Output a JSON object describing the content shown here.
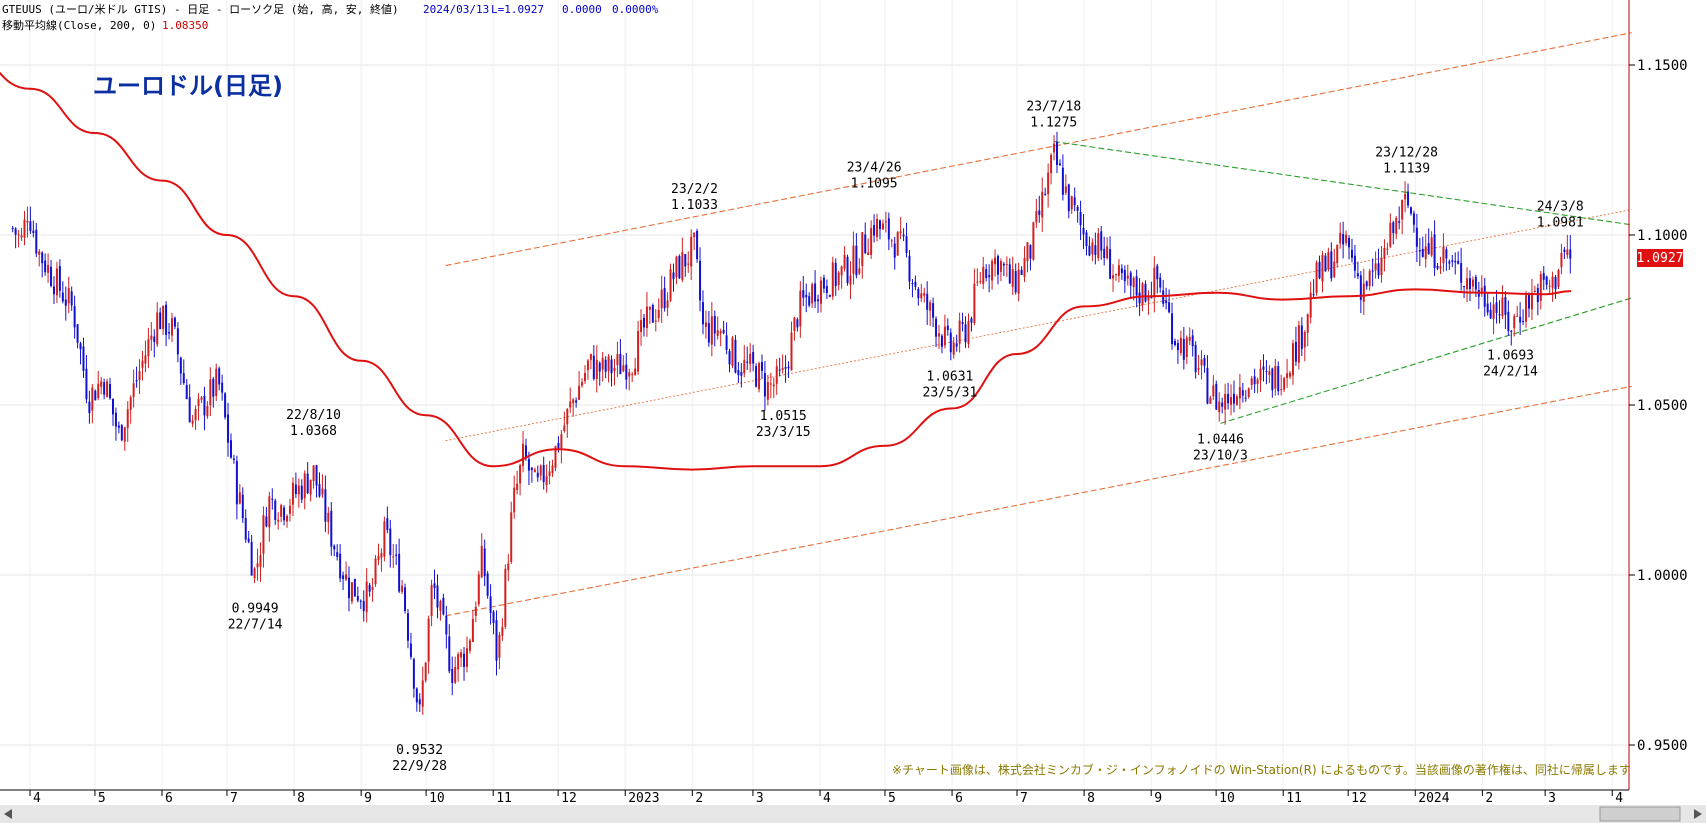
{
  "header": {
    "line1": "GTEUUS (ユーロ/米ドル GTIS) - 日足 - ローソク足 (始, 高, 安, 終値)",
    "date": "2024/03/13",
    "last": "L=1.0927",
    "change": "0.0000",
    "change_pct": "0.0000%",
    "ma_label": "移動平均線(Close, 200, 0)",
    "ma_value": "1.08350"
  },
  "title": "ユーロドル(日足)",
  "copyright": "※チャート画像は、株式会社ミンカブ・ジ・インフォノイドの Win-Station(R) によるものです。当該画像の著作権は、同社に帰属します",
  "price_box": "1.0927",
  "colors": {
    "up_candle": "#d02020",
    "down_candle": "#1010d0",
    "ma": "#e01010",
    "channel": "#e8703a",
    "triangle": "#2aa02a",
    "price_box": "#e01010",
    "title": "#0a2fa0"
  },
  "chart_data": {
    "type": "candlestick",
    "title": "ユーロドル(日足)",
    "y_axis_side": "right",
    "ylim": [
      0.9425,
      1.1725
    ],
    "y_ticks": [
      "1.1500",
      "1.1000",
      "1.0500",
      "1.0000",
      "0.9500"
    ],
    "x_ticks": [
      "4",
      "5",
      "6",
      "7",
      "8",
      "9",
      "10",
      "11",
      "12",
      "2023",
      "2",
      "3",
      "4",
      "5",
      "6",
      "7",
      "8",
      "9",
      "10",
      "11",
      "12",
      "2024",
      "2",
      "3",
      "4"
    ],
    "x_range": [
      "2022-04",
      "2024-04"
    ],
    "close_path": [
      {
        "date": "2022-03-24",
        "close": 1.102
      },
      {
        "date": "2022-03-28",
        "close": 1.098
      },
      {
        "date": "2022-03-31",
        "close": 1.108
      },
      {
        "date": "2022-04-05",
        "close": 1.095
      },
      {
        "date": "2022-04-14",
        "close": 1.085
      },
      {
        "date": "2022-04-21",
        "close": 1.078
      },
      {
        "date": "2022-04-28",
        "close": 1.052
      },
      {
        "date": "2022-05-05",
        "close": 1.058
      },
      {
        "date": "2022-05-12",
        "close": 1.041
      },
      {
        "date": "2022-05-19",
        "close": 1.055
      },
      {
        "date": "2022-05-30",
        "close": 1.076
      },
      {
        "date": "2022-06-06",
        "close": 1.072
      },
      {
        "date": "2022-06-15",
        "close": 1.045
      },
      {
        "date": "2022-06-27",
        "close": 1.057
      },
      {
        "date": "2022-07-05",
        "close": 1.027
      },
      {
        "date": "2022-07-14",
        "close": 1.0
      },
      {
        "date": "2022-07-20",
        "close": 1.022
      },
      {
        "date": "2022-07-27",
        "close": 1.02
      },
      {
        "date": "2022-08-10",
        "close": 1.03
      },
      {
        "date": "2022-08-18",
        "close": 1.012
      },
      {
        "date": "2022-08-26",
        "close": 0.997
      },
      {
        "date": "2022-09-05",
        "close": 0.993
      },
      {
        "date": "2022-09-12",
        "close": 1.012
      },
      {
        "date": "2022-09-20",
        "close": 0.997
      },
      {
        "date": "2022-09-28",
        "close": 0.958
      },
      {
        "date": "2022-10-04",
        "close": 0.998
      },
      {
        "date": "2022-10-13",
        "close": 0.972
      },
      {
        "date": "2022-10-20",
        "close": 0.978
      },
      {
        "date": "2022-10-27",
        "close": 1.005
      },
      {
        "date": "2022-11-03",
        "close": 0.975
      },
      {
        "date": "2022-11-10",
        "close": 1.02
      },
      {
        "date": "2022-11-15",
        "close": 1.035
      },
      {
        "date": "2022-11-21",
        "close": 1.025
      },
      {
        "date": "2022-11-30",
        "close": 1.037
      },
      {
        "date": "2022-12-07",
        "close": 1.05
      },
      {
        "date": "2022-12-15",
        "close": 1.062
      },
      {
        "date": "2022-12-22",
        "close": 1.06
      },
      {
        "date": "2023-01-04",
        "close": 1.063
      },
      {
        "date": "2023-01-10",
        "close": 1.073
      },
      {
        "date": "2023-01-18",
        "close": 1.081
      },
      {
        "date": "2023-01-25",
        "close": 1.09
      },
      {
        "date": "2023-02-02",
        "close": 1.096
      },
      {
        "date": "2023-02-06",
        "close": 1.072
      },
      {
        "date": "2023-02-14",
        "close": 1.072
      },
      {
        "date": "2023-02-22",
        "close": 1.062
      },
      {
        "date": "2023-03-02",
        "close": 1.06
      },
      {
        "date": "2023-03-08",
        "close": 1.055
      },
      {
        "date": "2023-03-15",
        "close": 1.058
      },
      {
        "date": "2023-03-22",
        "close": 1.078
      },
      {
        "date": "2023-03-30",
        "close": 1.085
      },
      {
        "date": "2023-04-10",
        "close": 1.088
      },
      {
        "date": "2023-04-18",
        "close": 1.093
      },
      {
        "date": "2023-04-26",
        "close": 1.103
      },
      {
        "date": "2023-05-03",
        "close": 1.1
      },
      {
        "date": "2023-05-10",
        "close": 1.095
      },
      {
        "date": "2023-05-17",
        "close": 1.082
      },
      {
        "date": "2023-05-24",
        "close": 1.075
      },
      {
        "date": "2023-05-31",
        "close": 1.066
      },
      {
        "date": "2023-06-08",
        "close": 1.073
      },
      {
        "date": "2023-06-15",
        "close": 1.09
      },
      {
        "date": "2023-06-22",
        "close": 1.093
      },
      {
        "date": "2023-06-29",
        "close": 1.085
      },
      {
        "date": "2023-07-07",
        "close": 1.095
      },
      {
        "date": "2023-07-18",
        "close": 1.123
      },
      {
        "date": "2023-07-25",
        "close": 1.11
      },
      {
        "date": "2023-08-01",
        "close": 1.1
      },
      {
        "date": "2023-08-10",
        "close": 1.095
      },
      {
        "date": "2023-08-18",
        "close": 1.085
      },
      {
        "date": "2023-08-28",
        "close": 1.083
      },
      {
        "date": "2023-09-04",
        "close": 1.087
      },
      {
        "date": "2023-09-12",
        "close": 1.07
      },
      {
        "date": "2023-09-20",
        "close": 1.065
      },
      {
        "date": "2023-09-27",
        "close": 1.055
      },
      {
        "date": "2023-10-03",
        "close": 1.05
      },
      {
        "date": "2023-10-10",
        "close": 1.055
      },
      {
        "date": "2023-10-18",
        "close": 1.058
      },
      {
        "date": "2023-10-25",
        "close": 1.057
      },
      {
        "date": "2023-11-01",
        "close": 1.06
      },
      {
        "date": "2023-11-09",
        "close": 1.07
      },
      {
        "date": "2023-11-16",
        "close": 1.087
      },
      {
        "date": "2023-11-23",
        "close": 1.092
      },
      {
        "date": "2023-11-30",
        "close": 1.098
      },
      {
        "date": "2023-12-07",
        "close": 1.085
      },
      {
        "date": "2023-12-14",
        "close": 1.088
      },
      {
        "date": "2023-12-21",
        "close": 1.1
      },
      {
        "date": "2023-12-28",
        "close": 1.11
      },
      {
        "date": "2024-01-05",
        "close": 1.095
      },
      {
        "date": "2024-01-12",
        "close": 1.095
      },
      {
        "date": "2024-01-19",
        "close": 1.09
      },
      {
        "date": "2024-01-26",
        "close": 1.087
      },
      {
        "date": "2024-02-02",
        "close": 1.082
      },
      {
        "date": "2024-02-09",
        "close": 1.078
      },
      {
        "date": "2024-02-14",
        "close": 1.073
      },
      {
        "date": "2024-02-21",
        "close": 1.08
      },
      {
        "date": "2024-02-28",
        "close": 1.085
      },
      {
        "date": "2024-03-05",
        "close": 1.085
      },
      {
        "date": "2024-03-08",
        "close": 1.095
      },
      {
        "date": "2024-03-13",
        "close": 1.0927
      }
    ],
    "moving_average_200": [
      {
        "date": "2022-03-01",
        "value": 1.1545
      },
      {
        "date": "2022-04-01",
        "value": 1.143
      },
      {
        "date": "2022-05-01",
        "value": 1.13
      },
      {
        "date": "2022-06-01",
        "value": 1.116
      },
      {
        "date": "2022-07-01",
        "value": 1.1
      },
      {
        "date": "2022-08-01",
        "value": 1.082
      },
      {
        "date": "2022-09-01",
        "value": 1.063
      },
      {
        "date": "2022-10-01",
        "value": 1.047
      },
      {
        "date": "2022-11-01",
        "value": 1.032
      },
      {
        "date": "2022-12-01",
        "value": 1.037
      },
      {
        "date": "2023-01-01",
        "value": 1.032
      },
      {
        "date": "2023-02-01",
        "value": 1.031
      },
      {
        "date": "2023-03-01",
        "value": 1.032
      },
      {
        "date": "2023-04-01",
        "value": 1.032
      },
      {
        "date": "2023-05-01",
        "value": 1.038
      },
      {
        "date": "2023-06-01",
        "value": 1.049
      },
      {
        "date": "2023-07-01",
        "value": 1.065
      },
      {
        "date": "2023-08-01",
        "value": 1.079
      },
      {
        "date": "2023-09-01",
        "value": 1.082
      },
      {
        "date": "2023-10-01",
        "value": 1.083
      },
      {
        "date": "2023-11-01",
        "value": 1.081
      },
      {
        "date": "2023-12-01",
        "value": 1.082
      },
      {
        "date": "2024-01-01",
        "value": 1.084
      },
      {
        "date": "2024-02-01",
        "value": 1.083
      },
      {
        "date": "2024-03-01",
        "value": 1.0826
      },
      {
        "date": "2024-03-13",
        "value": 1.0835
      }
    ],
    "trendlines": [
      {
        "kind": "channel-upper",
        "from": {
          "date": "2022-10-10",
          "value": 1.091
        },
        "to": {
          "date": "2024-04-10",
          "value": 1.1595
        }
      },
      {
        "kind": "channel-middle",
        "from": {
          "date": "2022-10-10",
          "value": 1.0395
        },
        "to": {
          "date": "2024-04-10",
          "value": 1.1075
        }
      },
      {
        "kind": "channel-lower",
        "from": {
          "date": "2022-10-10",
          "value": 0.988
        },
        "to": {
          "date": "2024-04-10",
          "value": 1.0555
        }
      },
      {
        "kind": "triangle-upper",
        "from": {
          "date": "2023-07-18",
          "value": 1.1275
        },
        "to": {
          "date": "2024-04-10",
          "value": 1.103
        }
      },
      {
        "kind": "triangle-lower",
        "from": {
          "date": "2023-10-03",
          "value": 1.0446
        },
        "to": {
          "date": "2024-04-10",
          "value": 1.0815
        }
      }
    ],
    "annotations": [
      {
        "date": "22/9/28",
        "price": "0.9532",
        "type": "low"
      },
      {
        "date": "22/7/14",
        "price": "0.9949",
        "type": "low"
      },
      {
        "date": "22/8/10",
        "price": "1.0368",
        "type": "high"
      },
      {
        "date": "23/2/2",
        "price": "1.1033",
        "type": "high"
      },
      {
        "date": "23/3/15",
        "price": "1.0515",
        "type": "low"
      },
      {
        "date": "23/4/26",
        "price": "1.1095",
        "type": "high"
      },
      {
        "date": "23/5/31",
        "price": "1.0631",
        "type": "low"
      },
      {
        "date": "23/7/18",
        "price": "1.1275",
        "type": "high"
      },
      {
        "date": "23/10/3",
        "price": "1.0446",
        "type": "low"
      },
      {
        "date": "23/12/28",
        "price": "1.1139",
        "type": "high"
      },
      {
        "date": "24/2/14",
        "price": "1.0693",
        "type": "low"
      },
      {
        "date": "24/3/8",
        "price": "1.0981",
        "type": "high"
      }
    ]
  }
}
